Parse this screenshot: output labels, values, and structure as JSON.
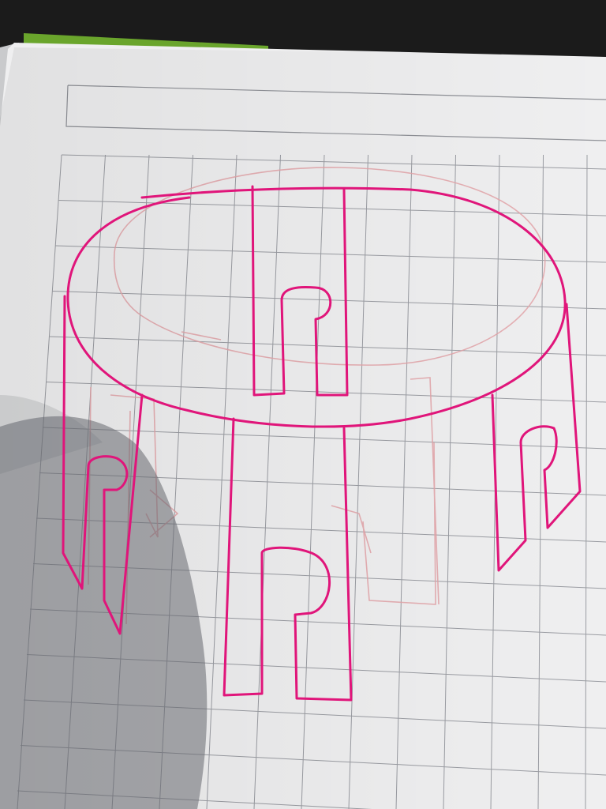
{
  "photo": {
    "subject": "hand-drawn-round-table-sketch",
    "colors": {
      "background": "#1b1b1b",
      "paper": "#efeff0",
      "page_edge": "#d9dadc",
      "cover_green": "#6aa52c",
      "grid_line": "#9a9ca2",
      "ink_magenta": "#e0157a",
      "pencil_sketch": "#e3a3a8",
      "shadow": "#7f8187"
    }
  }
}
